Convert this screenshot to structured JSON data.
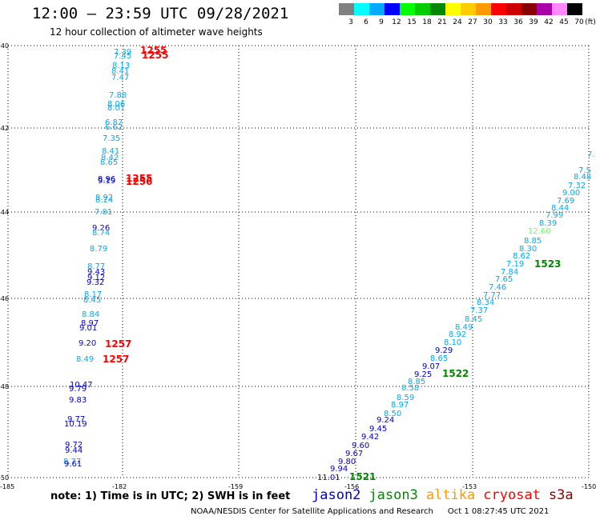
{
  "title": "12:00 – 23:59 UTC 09/28/2021",
  "subtitle": "12 hour collection of altimeter wave heights",
  "legend": {
    "unit": "(ft)",
    "items": [
      {
        "label": "3",
        "color": "#808080"
      },
      {
        "label": "6",
        "color": "#00ffff"
      },
      {
        "label": "9",
        "color": "#00aaff"
      },
      {
        "label": "12",
        "color": "#0000ff"
      },
      {
        "label": "15",
        "color": "#00ff00"
      },
      {
        "label": "18",
        "color": "#00cc00"
      },
      {
        "label": "21",
        "color": "#008800"
      },
      {
        "label": "24",
        "color": "#ffff00"
      },
      {
        "label": "27",
        "color": "#ffcc00"
      },
      {
        "label": "30",
        "color": "#ff9900"
      },
      {
        "label": "33",
        "color": "#ff0000"
      },
      {
        "label": "36",
        "color": "#cc0000"
      },
      {
        "label": "39",
        "color": "#880000"
      },
      {
        "label": "42",
        "color": "#aa00aa"
      },
      {
        "label": "45",
        "color": "#ff88ff"
      },
      {
        "label": "70",
        "color": "#000000"
      }
    ]
  },
  "axes": {
    "lon_ticks": [
      "-185",
      "-182",
      "-159",
      "-156",
      "-153",
      "-150"
    ],
    "lat_ticks": [
      "-40",
      "-42",
      "-44",
      "-46",
      "-48",
      "-50"
    ]
  },
  "markers": {
    "points": [
      [
        "7.39",
        "#00aaff"
      ],
      [
        "7.45",
        "#00aaff"
      ],
      [
        "8.13",
        "#00aaff"
      ],
      [
        "8.41",
        "#00aaff"
      ],
      [
        "7.47",
        "#00aaff"
      ],
      [
        "7.88",
        "#00aaff"
      ],
      [
        "8.06",
        "#00aaff"
      ],
      [
        "8.01",
        "#00aaff"
      ],
      [
        "6.82",
        "#00aaff"
      ],
      [
        "6.62",
        "#00aaff"
      ],
      [
        "7.35",
        "#00aaff"
      ],
      [
        "8.41",
        "#00aaff"
      ],
      [
        "8.42",
        "#00aaff"
      ],
      [
        "8.65",
        "#00aaff"
      ],
      [
        "8.96",
        "#0000cc"
      ],
      [
        "9.19",
        "#0000cc"
      ],
      [
        "8.92",
        "#00aaff"
      ],
      [
        "8.24",
        "#00aaff"
      ],
      [
        "7.81",
        "#00aaff"
      ],
      [
        "9.26",
        "#0000cc"
      ],
      [
        "8.74",
        "#00aaff"
      ],
      [
        "8.79",
        "#00aaff"
      ],
      [
        "8.77",
        "#00aaff"
      ],
      [
        "9.43",
        "#0000cc"
      ],
      [
        "9.12",
        "#0000cc"
      ],
      [
        "9.32",
        "#0000cc"
      ],
      [
        "8.17",
        "#00aaff"
      ],
      [
        "8.45",
        "#00aaff"
      ],
      [
        "8.84",
        "#00aaff"
      ],
      [
        "8.97",
        "#0000cc"
      ],
      [
        "9.01",
        "#0000cc"
      ],
      [
        "9.20",
        "#0000cc"
      ],
      [
        "8.49",
        "#00aaff"
      ],
      [
        "10.47",
        "#0000cc"
      ],
      [
        "9.79",
        "#0000cc"
      ],
      [
        "9.83",
        "#0000cc"
      ],
      [
        "9.77",
        "#0000cc"
      ],
      [
        "10.19",
        "#0000cc"
      ],
      [
        "9.72",
        "#0000cc"
      ],
      [
        "9.44",
        "#0000cc"
      ],
      [
        "8.77",
        "#00aaff"
      ],
      [
        "9.61",
        "#0000cc"
      ],
      [
        "7.",
        "#00aaff"
      ],
      [
        "8.48",
        "#00aaff"
      ],
      [
        "7.5",
        "#00aaff"
      ],
      [
        "7.32",
        "#00aaff"
      ],
      [
        "9.00",
        "#00aaff"
      ],
      [
        "7.69",
        "#00aaff"
      ],
      [
        "8.44",
        "#00aaff"
      ],
      [
        "7.99",
        "#00aaff"
      ],
      [
        "8.39",
        "#00aaff"
      ],
      [
        "12.60",
        "#66ff66"
      ],
      [
        "8.85",
        "#00aaff"
      ],
      [
        "8.30",
        "#00aaff"
      ],
      [
        "8.62",
        "#00aaff"
      ],
      [
        "7.19",
        "#00aaff"
      ],
      [
        "7.84",
        "#00aaff"
      ],
      [
        "7.65",
        "#00aaff"
      ],
      [
        "7.46",
        "#00aaff"
      ],
      [
        "7.77",
        "#00aaff"
      ],
      [
        "8.34",
        "#00aaff"
      ],
      [
        "7.37",
        "#00aaff"
      ],
      [
        "8.45",
        "#00aaff"
      ],
      [
        "8.49",
        "#00aaff"
      ],
      [
        "8.92",
        "#00aaff"
      ],
      [
        "8.10",
        "#00aaff"
      ],
      [
        "9.29",
        "#0000cc"
      ],
      [
        "8.65",
        "#00aaff"
      ],
      [
        "9.07",
        "#0000cc"
      ],
      [
        "9.25",
        "#0000cc"
      ],
      [
        "8.85",
        "#00aaff"
      ],
      [
        "8.58",
        "#00aaff"
      ],
      [
        "8.59",
        "#00aaff"
      ],
      [
        "8.97",
        "#00aaff"
      ],
      [
        "8.50",
        "#00aaff"
      ],
      [
        "9.24",
        "#0000cc"
      ],
      [
        "9.45",
        "#0000cc"
      ],
      [
        "9.42",
        "#0000cc"
      ],
      [
        "9.60",
        "#0000cc"
      ],
      [
        "9.67",
        "#0000cc"
      ],
      [
        "9.80",
        "#0000cc"
      ],
      [
        "9.94",
        "#0000cc"
      ],
      [
        "11.01",
        "#0000cc"
      ]
    ],
    "times": [
      [
        "1255",
        "#ff0000"
      ],
      [
        "1255",
        "#ff0000"
      ],
      [
        "1255",
        "#ff0000"
      ],
      [
        "1256",
        "#ff0000"
      ],
      [
        "1257",
        "#ff0000"
      ],
      [
        "1257",
        "#ff0000"
      ],
      [
        "1523",
        "#008800"
      ],
      [
        "1522",
        "#008800"
      ],
      [
        "1521",
        "#008800"
      ]
    ]
  },
  "note": "note:  1) Time is in UTC; 2) SWH is in feet",
  "satellites": [
    {
      "name": "jason2",
      "color": "#0000cc"
    },
    {
      "name": "jason3",
      "color": "#008800"
    },
    {
      "name": "altika",
      "color": "#ff9900"
    },
    {
      "name": "cryosat",
      "color": "#ff0000"
    },
    {
      "name": "s3a",
      "color": "#880000"
    }
  ],
  "footer": {
    "credit": "NOAA/NESDIS Center for Satellite Applications and Research",
    "timestamp": "Oct  1 08:27:45 UTC 2021"
  }
}
